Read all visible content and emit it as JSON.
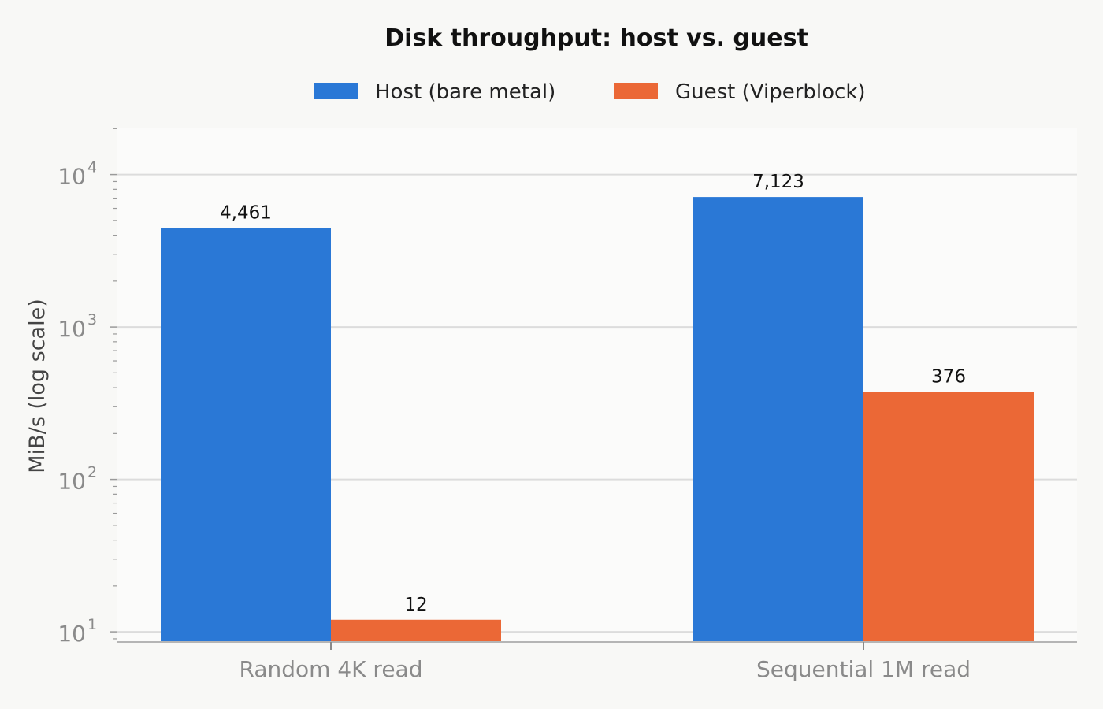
{
  "chart_data": {
    "type": "bar",
    "title": "Disk throughput: host vs. guest",
    "ylabel": "MiB/s (log scale)",
    "xlabel": "",
    "yscale": "log",
    "ylim": [
      8.6,
      20000
    ],
    "grid": true,
    "legend_position": "top-center",
    "categories": [
      "Random 4K read",
      "Sequential 1M read"
    ],
    "series": [
      {
        "name": "Host (bare metal)",
        "color": "#2a78d6",
        "values": [
          4461,
          7123
        ],
        "labels": [
          "4,461",
          "7,123"
        ]
      },
      {
        "name": "Guest (Viperblock)",
        "color": "#eb6836",
        "values": [
          12,
          376
        ],
        "labels": [
          "12",
          "376"
        ]
      }
    ],
    "y_ticks": [
      {
        "base": "10",
        "exp": "1",
        "value": 10
      },
      {
        "base": "10",
        "exp": "2",
        "value": 100
      },
      {
        "base": "10",
        "exp": "3",
        "value": 1000
      },
      {
        "base": "10",
        "exp": "4",
        "value": 10000
      }
    ]
  }
}
